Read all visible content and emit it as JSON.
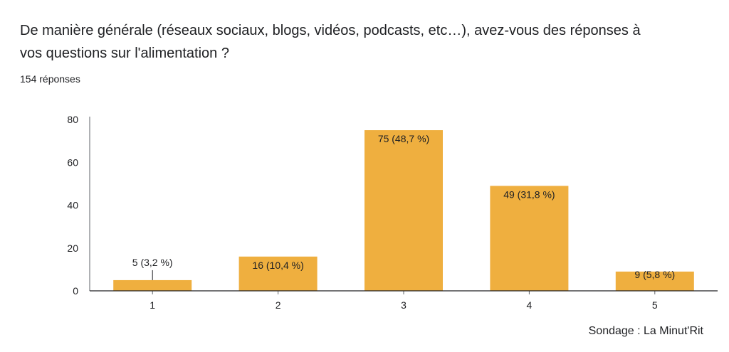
{
  "question": {
    "title": "De manière générale (réseaux sociaux, blogs, vidéos, podcasts, etc…), avez-vous des réponses à vos questions sur l'alimentation ?",
    "responses_label": "154 réponses"
  },
  "chart_data": {
    "type": "bar",
    "categories": [
      "1",
      "2",
      "3",
      "4",
      "5"
    ],
    "values": [
      5,
      16,
      75,
      49,
      9
    ],
    "data_labels": [
      "5 (3,2 %)",
      "16 (10,4 %)",
      "75 (48,7 %)",
      "49 (31,8 %)",
      "9 (5,8 %)"
    ],
    "ylim": [
      0,
      80
    ],
    "yticks": [
      0,
      20,
      40,
      60,
      80
    ],
    "grid": false,
    "bar_color": "#efaf3f",
    "axis_color": "#5f6368"
  },
  "footer": {
    "source": "Sondage : La Minut'Rit"
  }
}
